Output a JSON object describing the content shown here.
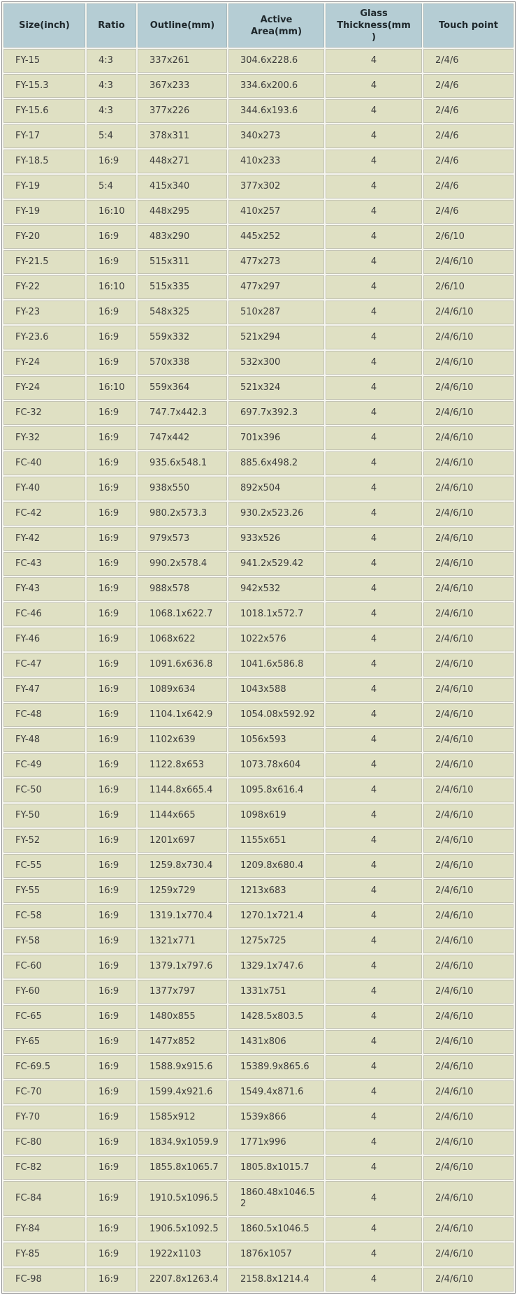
{
  "colors": {
    "header_bg": "#b5cdd4",
    "row_bg": "#dfe0c3",
    "header_text": "#1f282c",
    "body_text": "#3c3c3c"
  },
  "table": {
    "columns": [
      {
        "id": "size",
        "label": "Size(inch)"
      },
      {
        "id": "ratio",
        "label": "Ratio"
      },
      {
        "id": "outline",
        "label": "Outline(mm)"
      },
      {
        "id": "active-area",
        "label": "Active\nArea(mm)"
      },
      {
        "id": "glass-thickness",
        "label": "Glass\nThickness(mm\n)"
      },
      {
        "id": "touch-point",
        "label": "Touch point"
      }
    ],
    "rows": [
      [
        "FY-15",
        "4:3",
        "337x261",
        "304.6x228.6",
        "4",
        "2/4/6"
      ],
      [
        "FY-15.3",
        "4:3",
        "367x233",
        "334.6x200.6",
        "4",
        "2/4/6"
      ],
      [
        "FY-15.6",
        "4:3",
        "377x226",
        "344.6x193.6",
        "4",
        "2/4/6"
      ],
      [
        "FY-17",
        "5:4",
        "378x311",
        "340x273",
        "4",
        "2/4/6"
      ],
      [
        "FY-18.5",
        "16:9",
        "448x271",
        "410x233",
        "4",
        "2/4/6"
      ],
      [
        "FY-19",
        "5:4",
        "415x340",
        "377x302",
        "4",
        "2/4/6"
      ],
      [
        "FY-19",
        "16:10",
        "448x295",
        "410x257",
        "4",
        "2/4/6"
      ],
      [
        "FY-20",
        "16:9",
        "483x290",
        "445x252",
        "4",
        "2/6/10"
      ],
      [
        "FY-21.5",
        "16:9",
        "515x311",
        "477x273",
        "4",
        "2/4/6/10"
      ],
      [
        "FY-22",
        "16:10",
        "515x335",
        "477x297",
        "4",
        "2/6/10"
      ],
      [
        "FY-23",
        "16:9",
        "548x325",
        "510x287",
        "4",
        "2/4/6/10"
      ],
      [
        "FY-23.6",
        "16:9",
        "559x332",
        "521x294",
        "4",
        "2/4/6/10"
      ],
      [
        "FY-24",
        "16:9",
        "570x338",
        "532x300",
        "4",
        "2/4/6/10"
      ],
      [
        "FY-24",
        "16:10",
        "559x364",
        "521x324",
        "4",
        "2/4/6/10"
      ],
      [
        "FC-32",
        "16:9",
        "747.7x442.3",
        "697.7x392.3",
        "4",
        "2/4/6/10"
      ],
      [
        "FY-32",
        "16:9",
        "747x442",
        "701x396",
        "4",
        "2/4/6/10"
      ],
      [
        "FC-40",
        "16:9",
        "935.6x548.1",
        "885.6x498.2",
        "4",
        "2/4/6/10"
      ],
      [
        "FY-40",
        "16:9",
        "938x550",
        "892x504",
        "4",
        "2/4/6/10"
      ],
      [
        "FC-42",
        "16:9",
        "980.2x573.3",
        "930.2x523.26",
        "4",
        "2/4/6/10"
      ],
      [
        "FY-42",
        "16:9",
        "979x573",
        "933x526",
        "4",
        "2/4/6/10"
      ],
      [
        "FC-43",
        "16:9",
        "990.2x578.4",
        "941.2x529.42",
        "4",
        "2/4/6/10"
      ],
      [
        "FY-43",
        "16:9",
        "988x578",
        "942x532",
        "4",
        "2/4/6/10"
      ],
      [
        "FC-46",
        "16:9",
        "1068.1x622.7",
        "1018.1x572.7",
        "4",
        "2/4/6/10"
      ],
      [
        "FY-46",
        "16:9",
        "1068x622",
        "1022x576",
        "4",
        "2/4/6/10"
      ],
      [
        "FC-47",
        "16:9",
        "1091.6x636.8",
        "1041.6x586.8",
        "4",
        "2/4/6/10"
      ],
      [
        "FY-47",
        "16:9",
        "1089x634",
        "1043x588",
        "4",
        "2/4/6/10"
      ],
      [
        "FC-48",
        "16:9",
        "1104.1x642.9",
        "1054.08x592.92",
        "4",
        "2/4/6/10"
      ],
      [
        "FY-48",
        "16:9",
        "1102x639",
        "1056x593",
        "4",
        "2/4/6/10"
      ],
      [
        "FC-49",
        "16:9",
        "1122.8x653",
        "1073.78x604",
        "4",
        "2/4/6/10"
      ],
      [
        "FC-50",
        "16:9",
        "1144.8x665.4",
        "1095.8x616.4",
        "4",
        "2/4/6/10"
      ],
      [
        "FY-50",
        "16:9",
        "1144x665",
        "1098x619",
        "4",
        "2/4/6/10"
      ],
      [
        "FY-52",
        "16:9",
        "1201x697",
        "1155x651",
        "4",
        "2/4/6/10"
      ],
      [
        "FC-55",
        "16:9",
        "1259.8x730.4",
        "1209.8x680.4",
        "4",
        "2/4/6/10"
      ],
      [
        "FY-55",
        "16:9",
        "1259x729",
        "1213x683",
        "4",
        "2/4/6/10"
      ],
      [
        "FC-58",
        "16:9",
        "1319.1x770.4",
        "1270.1x721.4",
        "4",
        "2/4/6/10"
      ],
      [
        "FY-58",
        "16:9",
        "1321x771",
        "1275x725",
        "4",
        "2/4/6/10"
      ],
      [
        "FC-60",
        "16:9",
        "1379.1x797.6",
        "1329.1x747.6",
        "4",
        "2/4/6/10"
      ],
      [
        "FY-60",
        "16:9",
        "1377x797",
        "1331x751",
        "4",
        "2/4/6/10"
      ],
      [
        "FC-65",
        "16:9",
        "1480x855",
        "1428.5x803.5",
        "4",
        "2/4/6/10"
      ],
      [
        "FY-65",
        "16:9",
        "1477x852",
        "1431x806",
        "4",
        "2/4/6/10"
      ],
      [
        "FC-69.5",
        "16:9",
        "1588.9x915.6",
        "15389.9x865.6",
        "4",
        "2/4/6/10"
      ],
      [
        "FC-70",
        "16:9",
        "1599.4x921.6",
        "1549.4x871.6",
        "4",
        "2/4/6/10"
      ],
      [
        "FY-70",
        "16:9",
        "1585x912",
        "1539x866",
        "4",
        "2/4/6/10"
      ],
      [
        "FC-80",
        "16:9",
        "1834.9x1059.9",
        "1771x996",
        "4",
        "2/4/6/10"
      ],
      [
        "FC-82",
        "16:9",
        "1855.8x1065.7",
        "1805.8x1015.7",
        "4",
        "2/4/6/10"
      ],
      [
        "FC-84",
        "16:9",
        "1910.5x1096.5",
        "1860.48x1046.52",
        "4",
        "2/4/6/10"
      ],
      [
        "FY-84",
        "16:9",
        "1906.5x1092.5",
        "1860.5x1046.5",
        "4",
        "2/4/6/10"
      ],
      [
        "FY-85",
        "16:9",
        "1922x1103",
        "1876x1057",
        "4",
        "2/4/6/10"
      ],
      [
        "FC-98",
        "16:9",
        "2207.8x1263.4",
        "2158.8x1214.4",
        "4",
        "2/4/6/10"
      ]
    ]
  }
}
